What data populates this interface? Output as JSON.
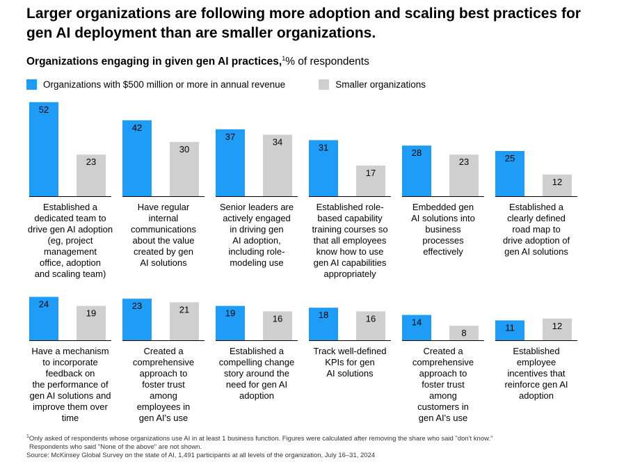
{
  "title": "Larger organizations are following more adoption and scaling best practices for gen AI deployment than are smaller organizations.",
  "subtitle": {
    "bold": "Organizations engaging in given gen AI practices,",
    "sup": "1",
    "rest": "% of respondents"
  },
  "colors": {
    "large": "#1F9CF5",
    "small": "#CFCFCF"
  },
  "chart_data": {
    "type": "bar",
    "series": [
      {
        "name": "Organizations with $500 million or more in annual revenue",
        "values": [
          52,
          42,
          37,
          31,
          28,
          25,
          24,
          23,
          19,
          18,
          14,
          11
        ]
      },
      {
        "name": "Smaller organizations",
        "values": [
          23,
          30,
          34,
          17,
          23,
          12,
          19,
          21,
          16,
          16,
          8,
          12
        ]
      }
    ],
    "categories": [
      [
        "Established a",
        "dedicated team to",
        "drive gen AI adoption",
        "(eg, project",
        "management",
        "office, adoption",
        "and scaling team)"
      ],
      [
        "Have regular",
        "internal",
        "communications",
        "about the value",
        "created by gen",
        "AI solutions"
      ],
      [
        "Senior leaders are",
        "actively engaged",
        "in driving gen",
        "AI adoption,",
        "including role-",
        "modeling use"
      ],
      [
        "Established role-",
        "based capability",
        "training courses so",
        "that all employees",
        "know how to use",
        "gen AI capabilities",
        "appropriately"
      ],
      [
        "Embedded gen",
        "AI solutions into",
        "business",
        "processes",
        "effectively"
      ],
      [
        "Established a",
        "clearly defined",
        "road map to",
        "drive adoption of",
        "gen AI solutions"
      ],
      [
        "Have a mechanism",
        "to incorporate",
        "feedback on",
        "the performance of",
        "gen AI solutions and",
        "improve them over",
        "time"
      ],
      [
        "Created a",
        "comprehensive",
        "approach to",
        "foster trust",
        "among",
        "employees in",
        "gen AI's use"
      ],
      [
        "Established a",
        "compelling change",
        "story around the",
        "need for gen AI",
        "adoption"
      ],
      [
        "Track well-defined",
        "KPIs for gen",
        "AI solutions"
      ],
      [
        "Created a",
        "comprehensive",
        "approach to",
        "foster trust",
        "among",
        "customers in",
        "gen AI's use"
      ],
      [
        "Established",
        "employee",
        "incentives that",
        "reinforce gen AI",
        "adoption"
      ]
    ]
  },
  "footnote": {
    "sup": "1",
    "line1": "Only asked of respondents whose organizations use AI in at least 1 business function. Figures were calculated after removing the share who said \"don't know.\"",
    "line2": "Respondents who said \"None of the above\" are not shown.",
    "line3": "Source: McKinsey Global Survey on the state of AI, 1,491 participants at all levels of the organization, July 16–31, 2024"
  }
}
